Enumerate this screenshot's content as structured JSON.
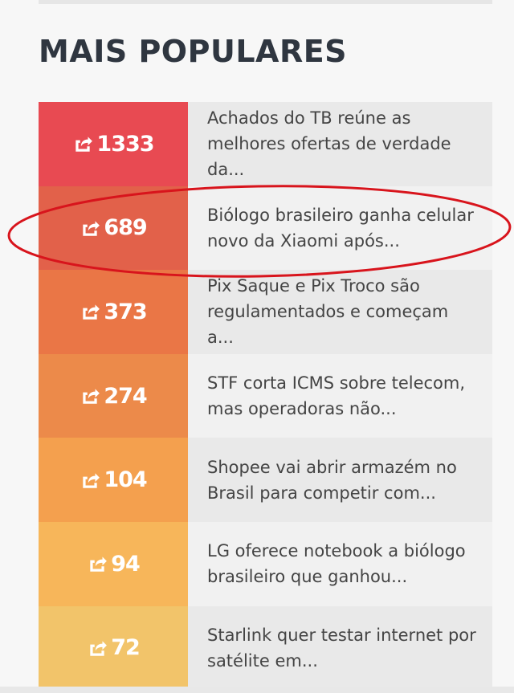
{
  "section": {
    "title": "MAIS POPULARES"
  },
  "items": [
    {
      "count": "1333",
      "headline": "Achados do TB reúne as melhores ofertas de verdade da...",
      "color": "#e84a52"
    },
    {
      "count": "689",
      "headline": "Biólogo brasileiro ganha celular novo da Xiaomi após...",
      "color": "#e2614a"
    },
    {
      "count": "373",
      "headline": "Pix Saque e Pix Troco são regulamentados e começam a...",
      "color": "#ea7646"
    },
    {
      "count": "274",
      "headline": "STF corta ICMS sobre telecom, mas operadoras não...",
      "color": "#ec8a4a"
    },
    {
      "count": "104",
      "headline": "Shopee vai abrir armazém no Brasil para competir com...",
      "color": "#f4a04e"
    },
    {
      "count": "94",
      "headline": "LG oferece notebook a biólogo brasileiro que ganhou...",
      "color": "#f7b65a"
    },
    {
      "count": "72",
      "headline": "Starlink quer testar internet por satélite em...",
      "color": "#f2c46a"
    }
  ],
  "icons": {
    "share": "share-square-icon"
  },
  "annotation": {
    "highlighted_item": 2,
    "color": "#d8141c"
  }
}
